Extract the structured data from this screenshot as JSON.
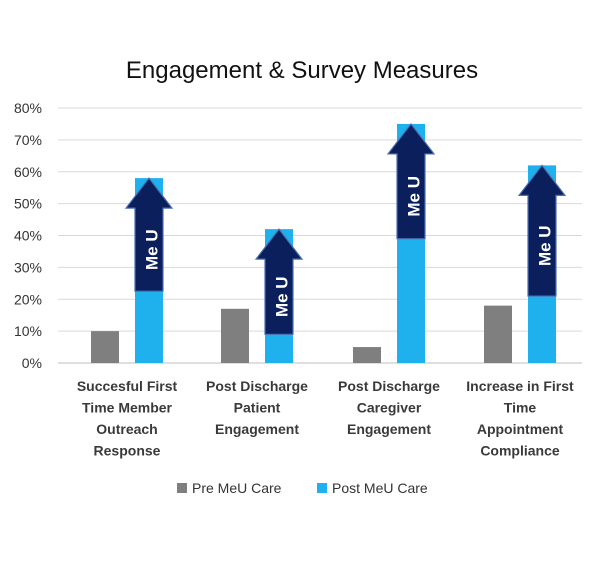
{
  "chart_data": {
    "type": "bar",
    "title": "Engagement & Survey Measures",
    "xlabel": "",
    "ylabel": "",
    "ylim": [
      0,
      80
    ],
    "y_ticks": [
      "0%",
      "10%",
      "20%",
      "30%",
      "40%",
      "50%",
      "60%",
      "70%",
      "80%"
    ],
    "grid": true,
    "legend_position": "bottom",
    "categories": [
      [
        "Succesful First",
        "Time Member",
        "Outreach",
        "Response"
      ],
      [
        "Post Discharge",
        "Patient",
        "Engagement"
      ],
      [
        "Post Discharge",
        "Caregiver",
        "Engagement"
      ],
      [
        "Increase in First",
        "Time",
        "Appointment",
        "Compliance"
      ]
    ],
    "series": [
      {
        "name": "Pre MeU Care",
        "color": "#7f7f7f",
        "values": [
          10,
          17,
          5,
          18
        ]
      },
      {
        "name": "Post MeU Care",
        "color": "#1fb1ee",
        "values": [
          58,
          42,
          75,
          62
        ]
      }
    ],
    "annotations": {
      "label": "Me U",
      "color": "#0b1f5c",
      "arrow_from": [
        22.5,
        9,
        39,
        21
      ],
      "arrow_to": [
        58,
        42,
        75,
        62
      ]
    }
  }
}
